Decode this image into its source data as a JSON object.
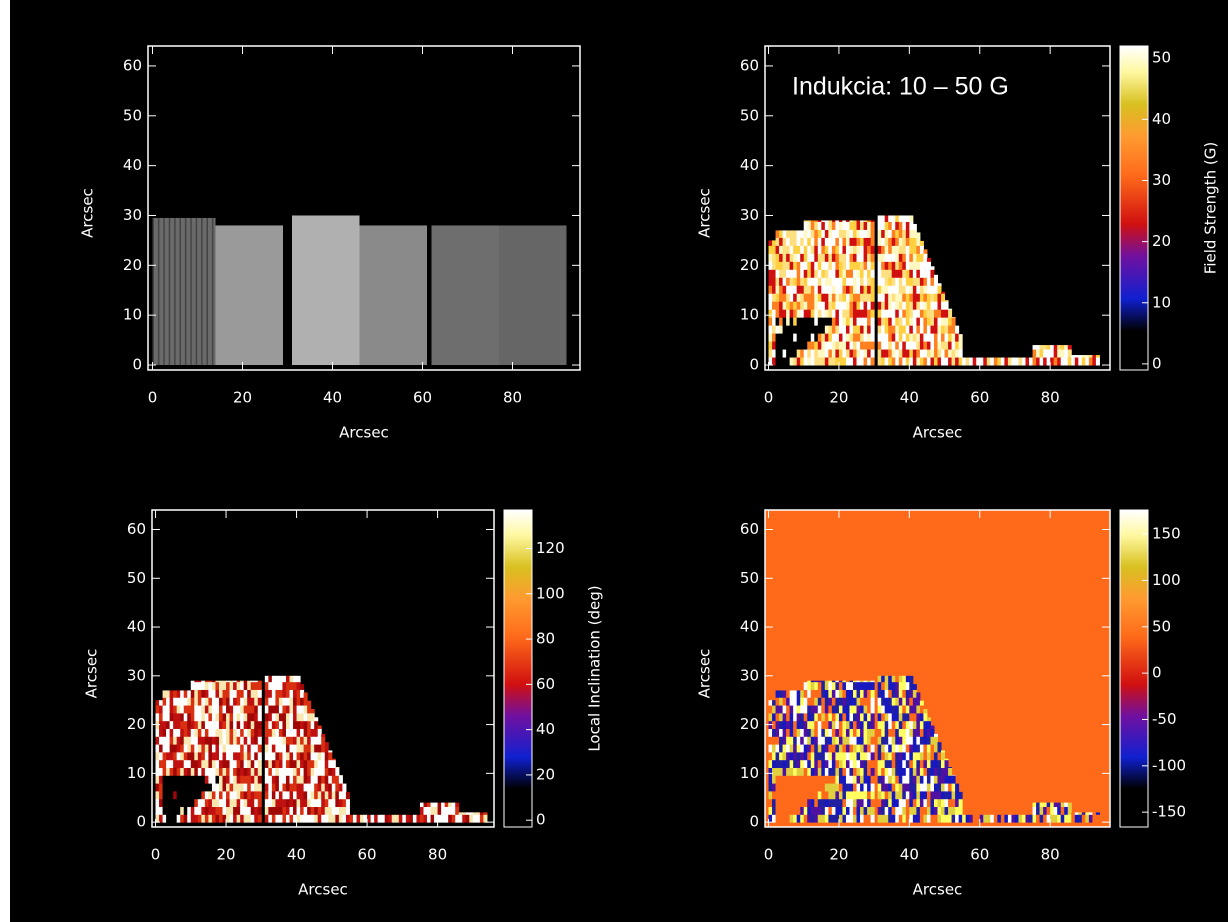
{
  "chart_data": [
    {
      "type": "image",
      "xlabel": "Arcsec",
      "ylabel": "Arcsec",
      "xlim": [
        -1,
        95
      ],
      "ylim": [
        -1,
        64
      ],
      "xticks": [
        0,
        20,
        40,
        60,
        80
      ],
      "yticks": [
        0,
        10,
        20,
        30,
        40,
        50,
        60
      ]
    },
    {
      "type": "image",
      "xlabel": "Arcsec",
      "ylabel": "Arcsec",
      "annotation": "Indukcia:  10 – 50 G",
      "xlim": [
        -1,
        97
      ],
      "ylim": [
        -1,
        64
      ],
      "xticks": [
        0,
        20,
        40,
        60,
        80
      ],
      "yticks": [
        0,
        10,
        20,
        30,
        40,
        50,
        60
      ],
      "colorbar": {
        "label": "Field Strength (G)",
        "lim": [
          -1,
          52
        ],
        "ticks": [
          0,
          10,
          20,
          30,
          40,
          50
        ]
      }
    },
    {
      "type": "image",
      "xlabel": "Arcsec",
      "ylabel": "Arcsec",
      "xlim": [
        -1,
        96
      ],
      "ylim": [
        -1,
        64
      ],
      "xticks": [
        0,
        20,
        40,
        60,
        80
      ],
      "yticks": [
        0,
        10,
        20,
        30,
        40,
        50,
        60
      ],
      "colorbar": {
        "label": "Local Inclination (deg)",
        "lim": [
          -3,
          137
        ],
        "ticks": [
          0,
          20,
          40,
          60,
          80,
          100,
          120
        ]
      }
    },
    {
      "type": "image",
      "xlabel": "Arcsec",
      "ylabel": "Arcsec",
      "xlim": [
        -1,
        97
      ],
      "ylim": [
        -1,
        64
      ],
      "xticks": [
        0,
        20,
        40,
        60,
        80
      ],
      "yticks": [
        0,
        10,
        20,
        30,
        40,
        50,
        60
      ],
      "colorbar": {
        "lim": [
          -166,
          176
        ],
        "ticks": [
          -150,
          -100,
          -50,
          0,
          50,
          100,
          150
        ]
      }
    }
  ]
}
